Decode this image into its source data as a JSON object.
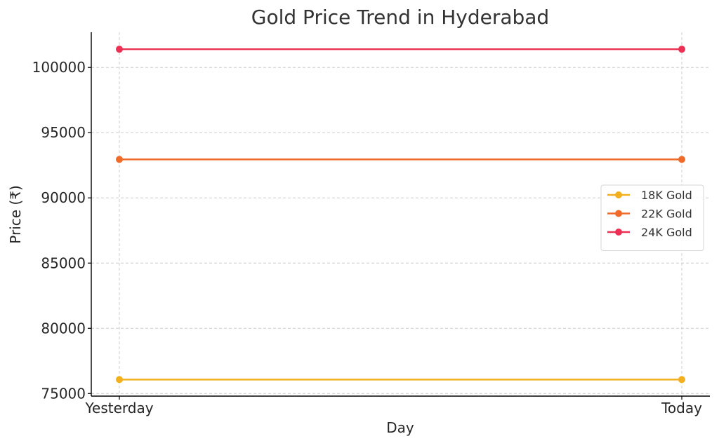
{
  "chart_data": {
    "type": "line",
    "title": "Gold Price Trend in Hyderabad",
    "xlabel": "Day",
    "ylabel": "Price (₹)",
    "categories": [
      "Yesterday",
      "Today"
    ],
    "ylim": [
      74800,
      102700
    ],
    "yticks": [
      75000,
      80000,
      85000,
      90000,
      95000,
      100000
    ],
    "grid": true,
    "legend_position": "center-right",
    "series": [
      {
        "name": "18K Gold",
        "color": "#F2B01E",
        "values": [
          76070,
          76070
        ]
      },
      {
        "name": "22K Gold",
        "color": "#F06A2A",
        "values": [
          92950,
          92950
        ]
      },
      {
        "name": "24K Gold",
        "color": "#EC3155",
        "values": [
          101400,
          101400
        ]
      }
    ]
  }
}
